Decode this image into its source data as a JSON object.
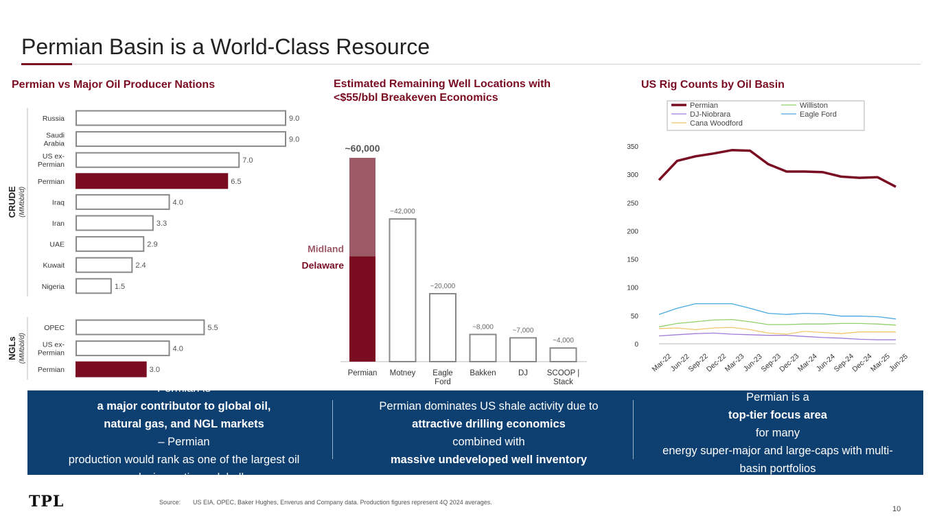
{
  "page": {
    "title": "Permian Basin is a World-Class Resource",
    "page_number": "10",
    "logo_text": "TPL",
    "source_label": "Source:",
    "source_text": "US EIA, OPEC, Baker Hughes, Enverus and Company data. Production figures represent 4Q 2024 averages."
  },
  "colors": {
    "accent": "#7a0c22",
    "accent_light": "#9b5a66",
    "banner": "#0e3f71",
    "bar_outline": "#888888"
  },
  "sections": {
    "left_title": "Permian vs Major Oil Producer Nations",
    "mid_title_line1": "Estimated Remaining Well Locations with",
    "mid_title_line2": "<$55/bbl Breakeven Economics",
    "right_title": "US Rig Counts by Oil Basin"
  },
  "banner": {
    "col1": {
      "line1_pre": "Permian is ",
      "line1_bold": "a major contributor to global oil,",
      "line2_bold": "natural gas, and NGL markets",
      "line2_post": " – Permian",
      "line3": "production would rank as one of the largest oil",
      "line4": "producing nations globally"
    },
    "col2": {
      "line1": "Permian dominates US shale activity due to",
      "line2_bold": "attractive drilling economics",
      "line2_post": " combined with",
      "line3_bold": "massive undeveloped well inventory"
    },
    "col3": {
      "line1_pre": "Permian is a ",
      "line1_bold": "top-tier focus area",
      "line1_post": " for many",
      "line2": "energy super-major and large-caps with multi-",
      "line3": "basin portfolios"
    }
  },
  "chart_data": [
    {
      "type": "bar",
      "orientation": "horizontal",
      "title": "Permian vs Major Oil Producer Nations",
      "groups": [
        {
          "name": "CRUDE",
          "unit": "(MMbbl/d)",
          "categories": [
            [
              "Russia"
            ],
            [
              "Saudi",
              "Arabia"
            ],
            [
              "US ex-",
              "Permian"
            ],
            [
              "Permian"
            ],
            [
              "Iraq"
            ],
            [
              "Iran"
            ],
            [
              "UAE"
            ],
            [
              "Kuwait"
            ],
            [
              "Nigeria"
            ]
          ],
          "values": [
            9.0,
            9.0,
            7.0,
            6.5,
            4.0,
            3.3,
            2.9,
            2.4,
            1.5
          ],
          "labels": [
            "9.0",
            "9.0",
            "7.0",
            "6.5",
            "4.0",
            "3.3",
            "2.9",
            "2.4",
            "1.5"
          ],
          "highlight": [
            false,
            false,
            false,
            true,
            false,
            false,
            false,
            false,
            false
          ]
        },
        {
          "name": "NGLs",
          "unit": "(MMbbl/d)",
          "categories": [
            [
              "OPEC"
            ],
            [
              "US ex-",
              "Permian"
            ],
            [
              "Permian"
            ]
          ],
          "values": [
            5.5,
            4.0,
            3.0
          ],
          "labels": [
            "5.5",
            "4.0",
            "3.0"
          ],
          "highlight": [
            false,
            false,
            true
          ]
        }
      ],
      "xlim": [
        0,
        9.0
      ]
    },
    {
      "type": "bar",
      "title": "Estimated Remaining Well Locations with <$55/bbl Breakeven Economics",
      "categories": [
        [
          "Permian"
        ],
        [
          "Motney"
        ],
        [
          "Eagle",
          "Ford"
        ],
        [
          "Bakken"
        ],
        [
          "DJ"
        ],
        [
          "SCOOP |",
          "Stack"
        ]
      ],
      "values": [
        60000,
        42000,
        20000,
        8000,
        7000,
        4000
      ],
      "labels": [
        "~60,000",
        "~42,000",
        "~20,000",
        "~8,000",
        "~7,000",
        "~4,000"
      ],
      "stacked_first": {
        "segments": [
          {
            "name": "Delaware",
            "value": 31000
          },
          {
            "name": "Midland",
            "value": 29000
          }
        ]
      },
      "ylim": [
        0,
        60000
      ]
    },
    {
      "type": "line",
      "title": "US Rig Counts by Oil Basin",
      "x": [
        "Mar-22",
        "Jun-22",
        "Sep-22",
        "Dec-22",
        "Mar-23",
        "Jun-23",
        "Sep-23",
        "Dec-23",
        "Mar-24",
        "Jun-24",
        "Sep-24",
        "Dec-24",
        "Mar-25",
        "Jun-25"
      ],
      "ylim": [
        0,
        350
      ],
      "yticks": [
        0,
        50,
        100,
        150,
        200,
        250,
        300,
        350
      ],
      "legend_position": "top",
      "series": [
        {
          "name": "Permian",
          "color": "#7a0c22",
          "values": [
            290,
            324,
            332,
            337,
            343,
            342,
            318,
            305,
            305,
            304,
            296,
            294,
            295,
            278
          ]
        },
        {
          "name": "Williston",
          "color": "#8fd16a",
          "values": [
            30,
            36,
            39,
            42,
            43,
            39,
            34,
            34,
            35,
            35,
            36,
            36,
            35,
            33
          ]
        },
        {
          "name": "DJ-Niobrara",
          "color": "#a07ad8",
          "values": [
            14,
            16,
            18,
            19,
            17,
            16,
            15,
            15,
            13,
            11,
            10,
            8,
            7,
            7
          ]
        },
        {
          "name": "Eagle Ford",
          "color": "#4aa8e0",
          "values": [
            52,
            63,
            71,
            71,
            71,
            63,
            54,
            52,
            54,
            53,
            49,
            49,
            48,
            44
          ]
        },
        {
          "name": "Cana Woodford",
          "color": "#f2c56b",
          "values": [
            27,
            28,
            25,
            28,
            29,
            25,
            19,
            17,
            22,
            20,
            18,
            21,
            21,
            21
          ]
        }
      ]
    }
  ]
}
